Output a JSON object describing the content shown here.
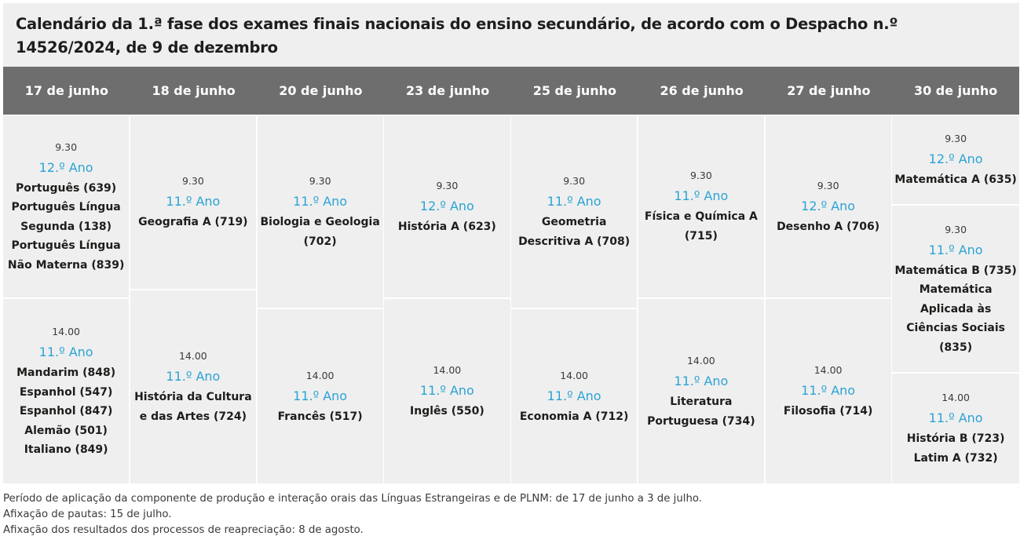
{
  "title": "Calendário da 1.ª fase dos exames finais nacionais do ensino secundário, de acordo com o Despacho n.º 14526/2024, de 9 de dezembro",
  "days": [
    {
      "date": "17 de junho",
      "slots": [
        {
          "time": "9.30",
          "grade": "12.º Ano",
          "subjects": [
            "Português (639)",
            "Português Língua",
            "Segunda (138)",
            "Português Língua",
            "Não Materna (839)"
          ]
        },
        {
          "time": "14.00",
          "grade": "11.º Ano",
          "subjects": [
            "Mandarim (848)",
            "Espanhol (547)",
            "Espanhol (847)",
            "Alemão (501)",
            "Italiano (849)"
          ]
        }
      ]
    },
    {
      "date": "18 de junho",
      "slots": [
        {
          "time": "9.30",
          "grade": "11.º Ano",
          "subjects": [
            "Geografia A (719)"
          ]
        },
        {
          "time": "14.00",
          "grade": "11.º Ano",
          "subjects": [
            "História da Cultura",
            "e das Artes (724)"
          ]
        }
      ]
    },
    {
      "date": "20 de junho",
      "slots": [
        {
          "time": "9.30",
          "grade": "11.º Ano",
          "subjects": [
            "Biologia e Geologia",
            "(702)"
          ]
        },
        {
          "time": "14.00",
          "grade": "11.º Ano",
          "subjects": [
            "Francês (517)"
          ]
        }
      ]
    },
    {
      "date": "23 de junho",
      "slots": [
        {
          "time": "9.30",
          "grade": "12.º Ano",
          "subjects": [
            "História A (623)"
          ]
        },
        {
          "time": "14.00",
          "grade": "11.º Ano",
          "subjects": [
            "Inglês (550)"
          ]
        }
      ]
    },
    {
      "date": "25 de junho",
      "slots": [
        {
          "time": "9.30",
          "grade": "11.º Ano",
          "subjects": [
            "Geometria",
            "Descritiva A (708)"
          ]
        },
        {
          "time": "14.00",
          "grade": "11.º Ano",
          "subjects": [
            "Economia A (712)"
          ]
        }
      ]
    },
    {
      "date": "26 de junho",
      "slots": [
        {
          "time": "9.30",
          "grade": "11.º Ano",
          "subjects": [
            "Física e Química A",
            "(715)"
          ]
        },
        {
          "time": "14.00",
          "grade": "11.º Ano",
          "subjects": [
            "Literatura",
            "Portuguesa (734)"
          ]
        }
      ]
    },
    {
      "date": "27 de junho",
      "slots": [
        {
          "time": "9.30",
          "grade": "12.º Ano",
          "subjects": [
            "Desenho A (706)"
          ]
        },
        {
          "time": "14.00",
          "grade": "11.º Ano",
          "subjects": [
            "Filosofia (714)"
          ]
        }
      ]
    },
    {
      "date": "30 de junho",
      "slots": [
        {
          "time": "9.30",
          "grade": "12.º Ano",
          "subjects": [
            "Matemática A (635)"
          ]
        },
        {
          "time": "9.30",
          "grade": "11.º Ano",
          "subjects": [
            "Matemática B (735)",
            "Matemática",
            "Aplicada às",
            "Ciências Sociais",
            "(835)"
          ]
        },
        {
          "time": "14.00",
          "grade": "11.º Ano",
          "subjects": [
            "História B (723)",
            "Latim A (732)"
          ]
        }
      ]
    }
  ],
  "notes": [
    "Período de aplicação da componente de produção e interação orais das Línguas Estrangeiras e de PLNM: de 17 de junho a 3 de julho.",
    "Afixação de pautas: 15 de julho.",
    "Afixação dos resultados dos processos de reapreciação: 8 de agosto."
  ],
  "colors": {
    "header_bg": "#6e6e6f",
    "cell_bg": "#efefef",
    "grade_accent": "#2aa3d5"
  }
}
